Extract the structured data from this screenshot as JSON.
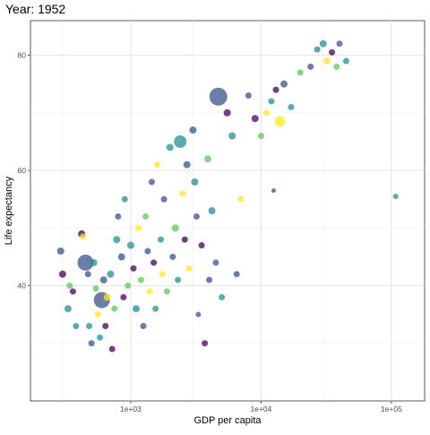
{
  "chart_data": {
    "type": "scatter",
    "title": "Year: 1952",
    "xlabel": "GDP per capita",
    "ylabel": "Life expectancy",
    "x_scale": "log10",
    "xlim": [
      170,
      180000
    ],
    "ylim": [
      20,
      86
    ],
    "x_ticks": [
      1000,
      10000,
      100000
    ],
    "x_tick_labels": [
      "1e+03",
      "1e+04",
      "1e+05"
    ],
    "x_minor_ticks": [
      300,
      3000,
      30000
    ],
    "y_ticks": [
      40,
      60,
      80
    ],
    "y_tick_labels": [
      "40",
      "60",
      "80"
    ],
    "y_minor_ticks": [
      30,
      50,
      70
    ],
    "grid": true,
    "legend": "none",
    "colors": [
      "#440154",
      "#3b528b",
      "#21908d",
      "#5dc863",
      "#fde725"
    ],
    "points": [
      {
        "x": 450,
        "y": 44,
        "size": 9,
        "color": "#3b528b"
      },
      {
        "x": 600,
        "y": 37.5,
        "size": 9,
        "color": "#3b528b"
      },
      {
        "x": 4700,
        "y": 72.8,
        "size": 10,
        "color": "#3b528b"
      },
      {
        "x": 2400,
        "y": 65,
        "size": 7,
        "color": "#21908d"
      },
      {
        "x": 14000,
        "y": 68.5,
        "size": 6,
        "color": "#fde725"
      },
      {
        "x": 290,
        "y": 46,
        "size": 4,
        "color": "#3b528b"
      },
      {
        "x": 300,
        "y": 42,
        "size": 4,
        "color": "#440154"
      },
      {
        "x": 330,
        "y": 36,
        "size": 4,
        "color": "#21908d"
      },
      {
        "x": 340,
        "y": 40,
        "size": 3.5,
        "color": "#5dc863"
      },
      {
        "x": 360,
        "y": 39,
        "size": 3.5,
        "color": "#440154"
      },
      {
        "x": 380,
        "y": 33,
        "size": 3.5,
        "color": "#21908d"
      },
      {
        "x": 420,
        "y": 49,
        "size": 4,
        "color": "#440154"
      },
      {
        "x": 430,
        "y": 48.5,
        "size": 3.5,
        "color": "#fde725"
      },
      {
        "x": 470,
        "y": 42,
        "size": 3.5,
        "color": "#3b528b"
      },
      {
        "x": 480,
        "y": 33,
        "size": 3.5,
        "color": "#21908d"
      },
      {
        "x": 500,
        "y": 30,
        "size": 3.5,
        "color": "#3b528b"
      },
      {
        "x": 520,
        "y": 44,
        "size": 4,
        "color": "#21908d"
      },
      {
        "x": 540,
        "y": 39.5,
        "size": 3.5,
        "color": "#5dc863"
      },
      {
        "x": 560,
        "y": 35,
        "size": 3.5,
        "color": "#fde725"
      },
      {
        "x": 580,
        "y": 31,
        "size": 3.5,
        "color": "#21908d"
      },
      {
        "x": 620,
        "y": 41,
        "size": 4,
        "color": "#3b528b"
      },
      {
        "x": 640,
        "y": 33,
        "size": 3.5,
        "color": "#440154"
      },
      {
        "x": 660,
        "y": 38,
        "size": 4,
        "color": "#fde725"
      },
      {
        "x": 700,
        "y": 42,
        "size": 4,
        "color": "#21908d"
      },
      {
        "x": 720,
        "y": 29,
        "size": 3.5,
        "color": "#440154"
      },
      {
        "x": 750,
        "y": 36,
        "size": 3.5,
        "color": "#5dc863"
      },
      {
        "x": 780,
        "y": 48,
        "size": 4,
        "color": "#21908d"
      },
      {
        "x": 800,
        "y": 52,
        "size": 3.5,
        "color": "#3b528b"
      },
      {
        "x": 850,
        "y": 45,
        "size": 4,
        "color": "#3b528b"
      },
      {
        "x": 880,
        "y": 38,
        "size": 3.5,
        "color": "#440154"
      },
      {
        "x": 900,
        "y": 55,
        "size": 3.5,
        "color": "#21908d"
      },
      {
        "x": 950,
        "y": 40,
        "size": 3.5,
        "color": "#5dc863"
      },
      {
        "x": 1000,
        "y": 47,
        "size": 4,
        "color": "#21908d"
      },
      {
        "x": 1050,
        "y": 43,
        "size": 3.5,
        "color": "#440154"
      },
      {
        "x": 1100,
        "y": 36,
        "size": 4,
        "color": "#21908d"
      },
      {
        "x": 1150,
        "y": 50,
        "size": 3.5,
        "color": "#fde725"
      },
      {
        "x": 1200,
        "y": 41,
        "size": 3.5,
        "color": "#5dc863"
      },
      {
        "x": 1250,
        "y": 33,
        "size": 3.5,
        "color": "#3b528b"
      },
      {
        "x": 1300,
        "y": 52,
        "size": 3.5,
        "color": "#5dc863"
      },
      {
        "x": 1350,
        "y": 46,
        "size": 3.5,
        "color": "#3b528b"
      },
      {
        "x": 1400,
        "y": 39,
        "size": 3.5,
        "color": "#fde725"
      },
      {
        "x": 1450,
        "y": 58,
        "size": 3.5,
        "color": "#3b528b"
      },
      {
        "x": 1500,
        "y": 44,
        "size": 3.5,
        "color": "#440154"
      },
      {
        "x": 1550,
        "y": 36,
        "size": 3.5,
        "color": "#21908d"
      },
      {
        "x": 1600,
        "y": 61,
        "size": 3.5,
        "color": "#fde725"
      },
      {
        "x": 1700,
        "y": 48,
        "size": 3.5,
        "color": "#21908d"
      },
      {
        "x": 1750,
        "y": 42,
        "size": 3.5,
        "color": "#fde725"
      },
      {
        "x": 1800,
        "y": 55,
        "size": 3.5,
        "color": "#3b528b"
      },
      {
        "x": 1900,
        "y": 39,
        "size": 3.5,
        "color": "#5dc863"
      },
      {
        "x": 2000,
        "y": 64,
        "size": 4,
        "color": "#21908d"
      },
      {
        "x": 2100,
        "y": 45,
        "size": 3.5,
        "color": "#3b528b"
      },
      {
        "x": 2200,
        "y": 50,
        "size": 4,
        "color": "#5dc863"
      },
      {
        "x": 2300,
        "y": 41,
        "size": 3.5,
        "color": "#21908d"
      },
      {
        "x": 2500,
        "y": 56,
        "size": 3.5,
        "color": "#fde725"
      },
      {
        "x": 2600,
        "y": 48,
        "size": 3.5,
        "color": "#440154"
      },
      {
        "x": 2700,
        "y": 61,
        "size": 4,
        "color": "#3b528b"
      },
      {
        "x": 2800,
        "y": 43,
        "size": 3.5,
        "color": "#fde725"
      },
      {
        "x": 3000,
        "y": 67,
        "size": 4,
        "color": "#3b528b"
      },
      {
        "x": 3100,
        "y": 58,
        "size": 4,
        "color": "#21908d"
      },
      {
        "x": 3200,
        "y": 52,
        "size": 3.5,
        "color": "#3b528b"
      },
      {
        "x": 3300,
        "y": 35,
        "size": 3,
        "color": "#3b528b"
      },
      {
        "x": 3500,
        "y": 47,
        "size": 3.5,
        "color": "#440154"
      },
      {
        "x": 3700,
        "y": 30,
        "size": 3.5,
        "color": "#440154"
      },
      {
        "x": 3900,
        "y": 62,
        "size": 4,
        "color": "#5dc863"
      },
      {
        "x": 4000,
        "y": 41,
        "size": 3.5,
        "color": "#3b528b"
      },
      {
        "x": 4200,
        "y": 53,
        "size": 4,
        "color": "#21908d"
      },
      {
        "x": 4500,
        "y": 44,
        "size": 3.5,
        "color": "#3b528b"
      },
      {
        "x": 5000,
        "y": 38,
        "size": 3.5,
        "color": "#21908d"
      },
      {
        "x": 5500,
        "y": 70,
        "size": 4,
        "color": "#440154"
      },
      {
        "x": 6000,
        "y": 66,
        "size": 4,
        "color": "#21908d"
      },
      {
        "x": 6500,
        "y": 42,
        "size": 3.5,
        "color": "#3b528b"
      },
      {
        "x": 7000,
        "y": 55,
        "size": 3.5,
        "color": "#fde725"
      },
      {
        "x": 8000,
        "y": 73,
        "size": 3.5,
        "color": "#3b528b"
      },
      {
        "x": 9000,
        "y": 69,
        "size": 4,
        "color": "#440154"
      },
      {
        "x": 10000,
        "y": 66,
        "size": 3.5,
        "color": "#5dc863"
      },
      {
        "x": 11000,
        "y": 70,
        "size": 3.5,
        "color": "#fde725"
      },
      {
        "x": 12000,
        "y": 72,
        "size": 3.5,
        "color": "#21908d"
      },
      {
        "x": 12500,
        "y": 56.5,
        "size": 2.5,
        "color": "#3b528b"
      },
      {
        "x": 13000,
        "y": 74,
        "size": 3.5,
        "color": "#440154"
      },
      {
        "x": 15000,
        "y": 75,
        "size": 4,
        "color": "#3b528b"
      },
      {
        "x": 17000,
        "y": 71,
        "size": 3.5,
        "color": "#21908d"
      },
      {
        "x": 20000,
        "y": 77,
        "size": 3.5,
        "color": "#5dc863"
      },
      {
        "x": 24000,
        "y": 78,
        "size": 3.5,
        "color": "#3b528b"
      },
      {
        "x": 27000,
        "y": 81,
        "size": 3.5,
        "color": "#21908d"
      },
      {
        "x": 30000,
        "y": 82,
        "size": 4,
        "color": "#21908d"
      },
      {
        "x": 32000,
        "y": 79,
        "size": 4,
        "color": "#fde725"
      },
      {
        "x": 35000,
        "y": 80.5,
        "size": 3.5,
        "color": "#440154"
      },
      {
        "x": 38000,
        "y": 78,
        "size": 3.5,
        "color": "#5dc863"
      },
      {
        "x": 40000,
        "y": 82,
        "size": 3.5,
        "color": "#3b528b"
      },
      {
        "x": 45000,
        "y": 79,
        "size": 3.5,
        "color": "#21908d"
      },
      {
        "x": 108000,
        "y": 55.5,
        "size": 3,
        "color": "#21908d"
      }
    ]
  }
}
